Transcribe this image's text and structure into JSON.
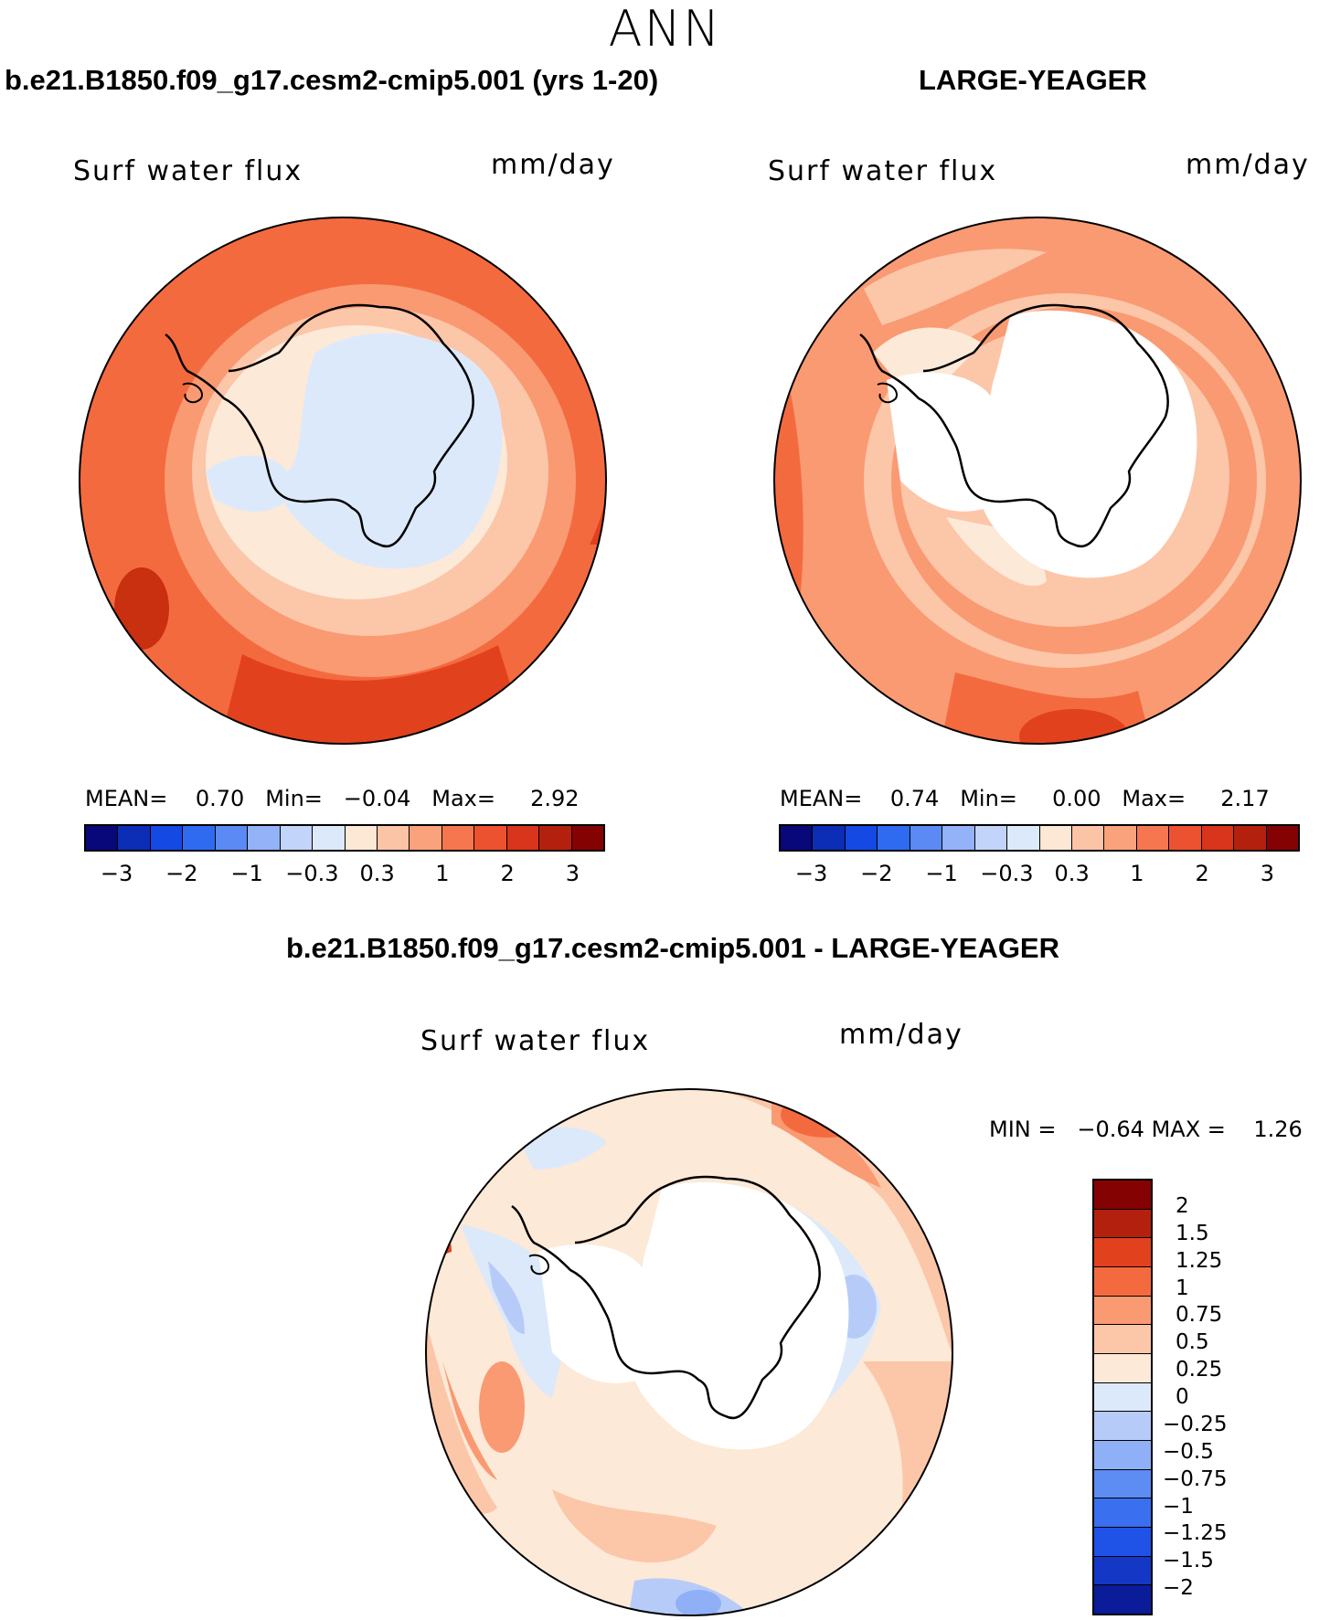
{
  "season": "ANN",
  "panels": [
    {
      "title": "b.e21.B1850.f09_g17.cesm2-cmip5.001 (yrs 1-20)",
      "variable": "Surf water flux",
      "units": "mm/day",
      "stats": {
        "mean_label": "MEAN=",
        "mean": "0.70",
        "min_label": "Min=",
        "min": "−0.04",
        "max_label": "Max=",
        "max": "2.92"
      }
    },
    {
      "title": "LARGE-YEAGER",
      "variable": "Surf water flux",
      "units": "mm/day",
      "stats": {
        "mean_label": "MEAN=",
        "mean": "0.74",
        "min_label": "Min=",
        "min": "0.00",
        "max_label": "Max=",
        "max": "2.17"
      }
    },
    {
      "title": "b.e21.B1850.f09_g17.cesm2-cmip5.001 - LARGE-YEAGER",
      "variable": "Surf water flux",
      "units": "mm/day",
      "stats": {
        "min_label": "MIN =",
        "min": "−0.64",
        "max_label": "MAX =",
        "max": "1.26"
      }
    }
  ],
  "colorbar": {
    "colors": [
      "#08087a",
      "#0c2db5",
      "#1549e3",
      "#2f6bf0",
      "#5b8af5",
      "#93b2f7",
      "#c2d4fa",
      "#dce9fb",
      "#fde7d5",
      "#fcc4a6",
      "#faa27c",
      "#f6774f",
      "#ed5230",
      "#d9341c",
      "#b4200e",
      "#850202"
    ],
    "ticks": [
      "−3",
      "−2",
      "−1",
      "−0.3",
      "0.3",
      "1",
      "2",
      "3"
    ]
  },
  "diff_colorbar": {
    "colors": [
      "#850202",
      "#b4200e",
      "#e2411e",
      "#f46a3f",
      "#fa9a72",
      "#fcc6a9",
      "#fde9d7",
      "#dce9fb",
      "#b7cbf8",
      "#8fb0f6",
      "#5d8cf2",
      "#3a6fef",
      "#1f52e6",
      "#1437c6",
      "#0a1c9a"
    ],
    "ticks": [
      "2",
      "1.5",
      "1.25",
      "1",
      "0.75",
      "0.5",
      "0.25",
      "0",
      "−0.25",
      "−0.5",
      "−0.75",
      "−1",
      "−1.25",
      "−1.5",
      "−2"
    ]
  }
}
